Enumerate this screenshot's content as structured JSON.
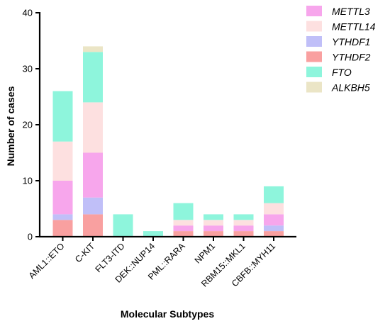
{
  "chart_data": {
    "type": "bar",
    "stacked": true,
    "xlabel": "Molecular Subtypes",
    "ylabel": "Number of cases",
    "ylim": [
      0,
      40
    ],
    "yticks": [
      0,
      10,
      20,
      30,
      40
    ],
    "grid": false,
    "legend_position": "top-right",
    "categories": [
      "AML1::ETO",
      "C-KIT",
      "FLT3-ITD",
      "DEK::NUP14",
      "PML::RARA",
      "NPM1",
      "RBM15::MKL1",
      "CBFB::MYH11"
    ],
    "series": [
      {
        "name": "YTHDF2",
        "color": "#f9a0a0",
        "values": [
          3,
          4,
          0,
          0,
          1,
          1,
          1,
          1
        ]
      },
      {
        "name": "YTHDF1",
        "color": "#c0bff8",
        "values": [
          1,
          3,
          0,
          0,
          0,
          0,
          0,
          1
        ]
      },
      {
        "name": "METTL3",
        "color": "#f7a6ec",
        "values": [
          6,
          8,
          0,
          0,
          1,
          1,
          1,
          2
        ]
      },
      {
        "name": "METTL14",
        "color": "#fde0e0",
        "values": [
          7,
          9,
          0,
          0,
          1,
          1,
          1,
          2
        ]
      },
      {
        "name": "FTO",
        "color": "#8ef5dc",
        "values": [
          9,
          9,
          4,
          1,
          3,
          1,
          1,
          3
        ]
      },
      {
        "name": "ALKBH5",
        "color": "#ebe5c6",
        "values": [
          0,
          1,
          0,
          0,
          0,
          0,
          0,
          0
        ]
      }
    ],
    "legend_order": [
      "METTL3",
      "METTL14",
      "YTHDF1",
      "YTHDF2",
      "FTO",
      "ALKBH5"
    ]
  }
}
